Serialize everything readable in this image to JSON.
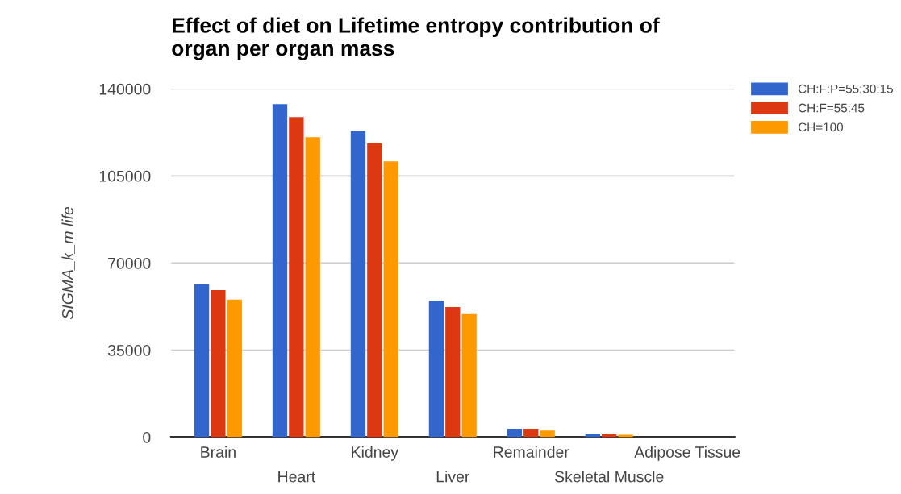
{
  "chart_data": {
    "type": "bar",
    "title": "Effect of diet on Lifetime entropy contribution of\norgan per organ mass",
    "ylabel": "SIGMA_k_m life",
    "categories": [
      "Brain",
      "Heart",
      "Kidney",
      "Liver",
      "Remainder",
      "Skeletal Muscle",
      "Adipose Tissue"
    ],
    "series": [
      {
        "name": "CH:F:P=55:30:15",
        "color": "#3366cc",
        "values": [
          61600,
          133900,
          123100,
          54800,
          3400,
          1100,
          null
        ]
      },
      {
        "name": "CH:F=55:45",
        "color": "#dc3912",
        "values": [
          59100,
          128700,
          118100,
          52300,
          3400,
          1100,
          null
        ]
      },
      {
        "name": "CH=100",
        "color": "#ff9900",
        "values": [
          55300,
          120600,
          110900,
          49500,
          2700,
          1000,
          null
        ]
      }
    ],
    "ylim": [
      0,
      140000
    ],
    "yticks": [
      0,
      35000,
      70000,
      105000,
      140000
    ],
    "grid": "y",
    "legend": "top right"
  }
}
